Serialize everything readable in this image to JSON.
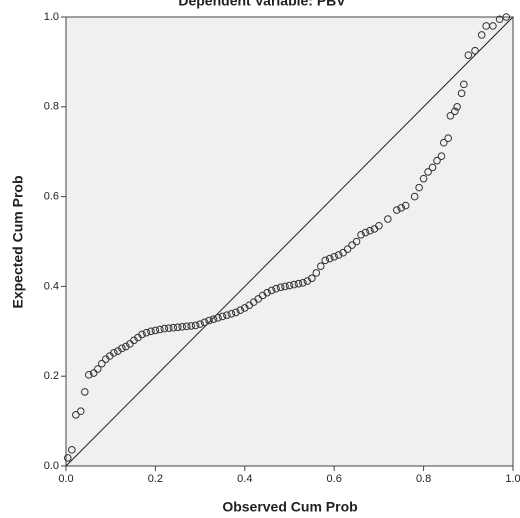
{
  "chart_data": {
    "type": "scatter",
    "title": "Dependent Variable: PBV",
    "x_label": "Observed Cum Prob",
    "y_label": "Expected Cum Prob",
    "x": [
      0.004,
      0.013,
      0.022,
      0.033,
      0.042,
      0.051,
      0.062,
      0.071,
      0.08,
      0.089,
      0.098,
      0.107,
      0.116,
      0.125,
      0.134,
      0.143,
      0.152,
      0.161,
      0.17,
      0.18,
      0.19,
      0.2,
      0.21,
      0.22,
      0.23,
      0.24,
      0.25,
      0.26,
      0.27,
      0.28,
      0.29,
      0.3,
      0.31,
      0.32,
      0.33,
      0.34,
      0.35,
      0.36,
      0.37,
      0.38,
      0.39,
      0.4,
      0.41,
      0.42,
      0.43,
      0.44,
      0.45,
      0.46,
      0.47,
      0.48,
      0.49,
      0.5,
      0.51,
      0.52,
      0.53,
      0.54,
      0.55,
      0.56,
      0.57,
      0.58,
      0.59,
      0.6,
      0.61,
      0.62,
      0.63,
      0.64,
      0.65,
      0.66,
      0.67,
      0.68,
      0.69,
      0.7,
      0.72,
      0.74,
      0.75,
      0.76,
      0.78,
      0.79,
      0.8,
      0.81,
      0.82,
      0.83,
      0.84,
      0.845,
      0.855,
      0.86,
      0.87,
      0.875,
      0.885,
      0.89,
      0.9,
      0.915,
      0.93,
      0.94,
      0.955,
      0.97,
      0.985
    ],
    "values": [
      0.018,
      0.036,
      0.114,
      0.122,
      0.165,
      0.203,
      0.207,
      0.216,
      0.228,
      0.238,
      0.245,
      0.252,
      0.256,
      0.262,
      0.266,
      0.272,
      0.28,
      0.286,
      0.293,
      0.297,
      0.3,
      0.302,
      0.304,
      0.306,
      0.307,
      0.308,
      0.309,
      0.31,
      0.311,
      0.312,
      0.313,
      0.316,
      0.32,
      0.324,
      0.327,
      0.33,
      0.333,
      0.336,
      0.339,
      0.342,
      0.347,
      0.352,
      0.358,
      0.365,
      0.372,
      0.38,
      0.386,
      0.391,
      0.395,
      0.398,
      0.4,
      0.402,
      0.404,
      0.406,
      0.408,
      0.412,
      0.418,
      0.43,
      0.445,
      0.458,
      0.462,
      0.466,
      0.47,
      0.475,
      0.483,
      0.492,
      0.5,
      0.515,
      0.52,
      0.524,
      0.528,
      0.535,
      0.55,
      0.57,
      0.575,
      0.58,
      0.6,
      0.62,
      0.64,
      0.655,
      0.665,
      0.68,
      0.69,
      0.72,
      0.73,
      0.78,
      0.79,
      0.8,
      0.83,
      0.85,
      0.915,
      0.925,
      0.96,
      0.98,
      0.98,
      0.995,
      1.0
    ],
    "xlim": [
      0,
      1
    ],
    "ylim": [
      0,
      1
    ],
    "xticks": [
      {
        "value": 0,
        "label": "0.0"
      },
      0.2,
      0.4,
      0.6,
      0.8,
      {
        "value": 1,
        "label": "1.0"
      }
    ],
    "yticks": [
      {
        "value": 0,
        "label": "0.0"
      },
      0.2,
      0.4,
      0.6,
      0.8,
      {
        "value": 1,
        "label": "1.0"
      }
    ],
    "marker_color": "#333333",
    "background": "#f0f0f0"
  }
}
